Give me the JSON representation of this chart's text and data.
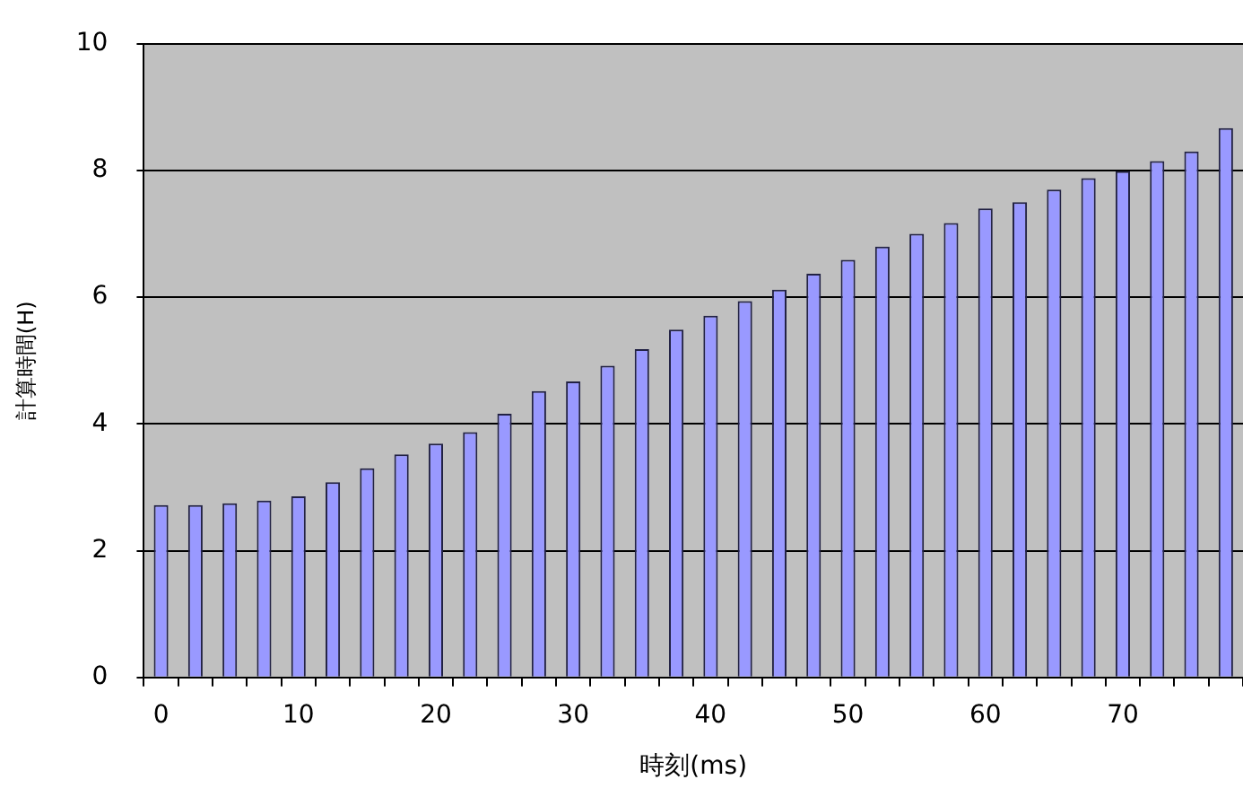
{
  "chart_data": {
    "type": "bar",
    "xlabel": "時刻(ms)",
    "ylabel": "計算時間(H)",
    "categories": [
      "0",
      null,
      null,
      null,
      "10",
      null,
      null,
      null,
      "20",
      null,
      null,
      null,
      "30",
      null,
      null,
      null,
      "40",
      null,
      null,
      null,
      "50",
      null,
      null,
      null,
      "60",
      null,
      null,
      null,
      "70",
      null,
      null,
      null
    ],
    "values": [
      2.72,
      2.72,
      2.75,
      2.79,
      2.86,
      3.08,
      3.3,
      3.52,
      3.69,
      3.87,
      4.16,
      4.52,
      4.67,
      4.92,
      5.18,
      5.49,
      5.71,
      5.94,
      6.12,
      6.37,
      6.59,
      6.8,
      7.0,
      7.17,
      7.4,
      7.5,
      7.7,
      7.88,
      7.99,
      8.15,
      8.3,
      8.67
    ],
    "color": "#9999ff",
    "ylim": [
      0,
      10
    ],
    "yticks": [
      0,
      2,
      4,
      6,
      8,
      10
    ],
    "grid": "y",
    "legend": false
  }
}
